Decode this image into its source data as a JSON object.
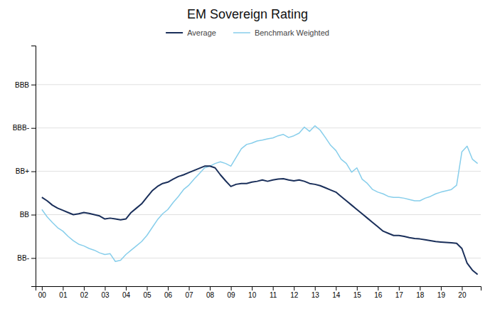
{
  "chart_data": {
    "type": "line",
    "title": "EM Sovereign Rating",
    "x": [
      2000.0,
      2000.25,
      2000.5,
      2000.75,
      2001.0,
      2001.25,
      2001.5,
      2001.75,
      2002.0,
      2002.25,
      2002.5,
      2002.75,
      2003.0,
      2003.25,
      2003.5,
      2003.75,
      2004.0,
      2004.25,
      2004.5,
      2004.75,
      2005.0,
      2005.25,
      2005.5,
      2005.75,
      2006.0,
      2006.25,
      2006.5,
      2006.75,
      2007.0,
      2007.25,
      2007.5,
      2007.75,
      2008.0,
      2008.25,
      2008.5,
      2008.75,
      2009.0,
      2009.25,
      2009.5,
      2009.75,
      2010.0,
      2010.25,
      2010.5,
      2010.75,
      2011.0,
      2011.25,
      2011.5,
      2011.75,
      2012.0,
      2012.25,
      2012.5,
      2012.75,
      2013.0,
      2013.25,
      2013.5,
      2013.75,
      2014.0,
      2014.25,
      2014.5,
      2014.75,
      2015.0,
      2015.25,
      2015.5,
      2015.75,
      2016.0,
      2016.25,
      2016.5,
      2016.75,
      2017.0,
      2017.25,
      2017.5,
      2017.75,
      2018.0,
      2018.25,
      2018.5,
      2018.75,
      2019.0,
      2019.25,
      2019.5,
      2019.75,
      2020.0,
      2020.25,
      2020.5,
      2020.75
    ],
    "series": [
      {
        "name": "Average",
        "color": "#1a2f5a",
        "values": [
          1.4,
          1.32,
          1.22,
          1.15,
          1.1,
          1.05,
          1.0,
          1.02,
          1.05,
          1.03,
          1.0,
          0.97,
          0.9,
          0.92,
          0.9,
          0.88,
          0.9,
          1.05,
          1.15,
          1.25,
          1.4,
          1.55,
          1.65,
          1.72,
          1.75,
          1.82,
          1.88,
          1.92,
          1.97,
          2.02,
          2.07,
          2.12,
          2.12,
          2.08,
          1.92,
          1.78,
          1.65,
          1.7,
          1.72,
          1.72,
          1.75,
          1.77,
          1.8,
          1.77,
          1.8,
          1.82,
          1.83,
          1.8,
          1.78,
          1.8,
          1.77,
          1.72,
          1.7,
          1.67,
          1.62,
          1.57,
          1.52,
          1.42,
          1.32,
          1.22,
          1.12,
          1.02,
          0.92,
          0.82,
          0.72,
          0.62,
          0.57,
          0.52,
          0.52,
          0.5,
          0.47,
          0.45,
          0.44,
          0.42,
          0.4,
          0.38,
          0.37,
          0.36,
          0.35,
          0.34,
          0.22,
          -0.12,
          -0.28,
          -0.38
        ]
      },
      {
        "name": "Benchmark Weighted",
        "color": "#87ceeb",
        "values": [
          1.12,
          0.95,
          0.82,
          0.7,
          0.62,
          0.5,
          0.4,
          0.32,
          0.28,
          0.22,
          0.18,
          0.12,
          0.08,
          0.1,
          -0.08,
          -0.05,
          0.08,
          0.18,
          0.28,
          0.38,
          0.52,
          0.7,
          0.88,
          1.02,
          1.12,
          1.28,
          1.42,
          1.58,
          1.68,
          1.82,
          1.95,
          2.08,
          2.12,
          2.18,
          2.22,
          2.18,
          2.12,
          2.32,
          2.52,
          2.62,
          2.65,
          2.7,
          2.72,
          2.75,
          2.77,
          2.82,
          2.85,
          2.78,
          2.82,
          2.88,
          3.02,
          2.92,
          3.05,
          2.95,
          2.78,
          2.6,
          2.48,
          2.28,
          2.18,
          1.98,
          2.08,
          1.82,
          1.72,
          1.58,
          1.52,
          1.48,
          1.42,
          1.4,
          1.4,
          1.38,
          1.35,
          1.32,
          1.32,
          1.38,
          1.42,
          1.48,
          1.52,
          1.55,
          1.58,
          1.68,
          2.45,
          2.58,
          2.28,
          2.18
        ]
      }
    ],
    "xlim": [
      1999.7,
      2020.9
    ],
    "xticks": [
      {
        "value": 2000,
        "label": "00"
      },
      {
        "value": 2001,
        "label": "01"
      },
      {
        "value": 2002,
        "label": "02"
      },
      {
        "value": 2003,
        "label": "03"
      },
      {
        "value": 2004,
        "label": "04"
      },
      {
        "value": 2005,
        "label": "05"
      },
      {
        "value": 2006,
        "label": "06"
      },
      {
        "value": 2007,
        "label": "07"
      },
      {
        "value": 2008,
        "label": "08"
      },
      {
        "value": 2009,
        "label": "09"
      },
      {
        "value": 2010,
        "label": "10"
      },
      {
        "value": 2011,
        "label": "11"
      },
      {
        "value": 2012,
        "label": "12"
      },
      {
        "value": 2013,
        "label": "13"
      },
      {
        "value": 2014,
        "label": "14"
      },
      {
        "value": 2015,
        "label": "15"
      },
      {
        "value": 2016,
        "label": "16"
      },
      {
        "value": 2017,
        "label": "17"
      },
      {
        "value": 2018,
        "label": "18"
      },
      {
        "value": 2019,
        "label": "19"
      },
      {
        "value": 2020,
        "label": "20"
      }
    ],
    "ylim": [
      -0.65,
      4.9
    ],
    "yticks": [
      {
        "value": 0,
        "label": "BB-"
      },
      {
        "value": 1,
        "label": "BB"
      },
      {
        "value": 2,
        "label": "BB+"
      },
      {
        "value": 3,
        "label": "BBB-"
      },
      {
        "value": 4,
        "label": "BBB"
      }
    ],
    "grid": true,
    "legend": "top"
  }
}
